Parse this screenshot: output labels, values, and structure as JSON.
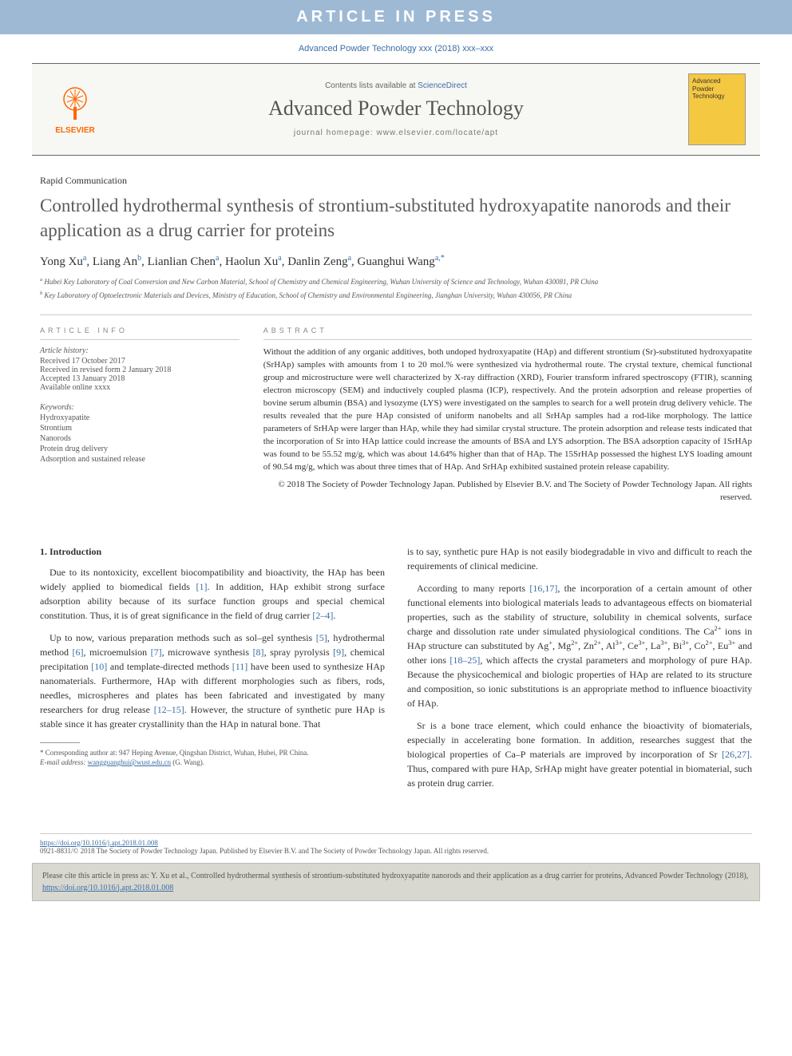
{
  "banner": "ARTICLE IN PRESS",
  "citation_top": "Advanced Powder Technology xxx (2018) xxx–xxx",
  "header": {
    "publisher_logo_text": "ELSEVIER",
    "contents_prefix": "Contents lists available at ",
    "contents_link": "ScienceDirect",
    "journal_name": "Advanced Powder Technology",
    "homepage_prefix": "journal homepage: ",
    "homepage_url": "www.elsevier.com/locate/apt",
    "cover_text": "Advanced Powder Technology"
  },
  "article": {
    "type": "Rapid Communication",
    "title": "Controlled hydrothermal synthesis of strontium-substituted hydroxyapatite nanorods and their application as a drug carrier for proteins",
    "authors_html": "Yong Xu<sup>a</sup>, Liang An<sup>b</sup>, Lianlian Chen<sup>a</sup>, Haolun Xu<sup>a</sup>, Danlin Zeng<sup>a</sup>, Guanghui Wang<sup>a,*</sup>",
    "affiliations": [
      "a Hubei Key Laboratory of Coal Conversion and New Carbon Material, School of Chemistry and Chemical Engineering, Wuhan University of Science and Technology, Wuhan 430081, PR China",
      "b Key Laboratory of Optoelectronic Materials and Devices, Ministry of Education, School of Chemistry and Environmental Engineering, Jianghan University, Wuhan 430056, PR China"
    ]
  },
  "info": {
    "heading": "ARTICLE INFO",
    "history_label": "Article history:",
    "history": [
      "Received 17 October 2017",
      "Received in revised form 2 January 2018",
      "Accepted 13 January 2018",
      "Available online xxxx"
    ],
    "keywords_label": "Keywords:",
    "keywords": [
      "Hydroxyapatite",
      "Strontium",
      "Nanorods",
      "Protein drug delivery",
      "Adsorption and sustained release"
    ]
  },
  "abstract": {
    "heading": "ABSTRACT",
    "text": "Without the addition of any organic additives, both undoped hydroxyapatite (HAp) and different strontium (Sr)-substituted hydroxyapatite (SrHAp) samples with amounts from 1 to 20 mol.% were synthesized via hydrothermal route. The crystal texture, chemical functional group and microstructure were well characterized by X-ray diffraction (XRD), Fourier transform infrared spectroscopy (FTIR), scanning electron microscopy (SEM) and inductively coupled plasma (ICP), respectively. And the protein adsorption and release properties of bovine serum albumin (BSA) and lysozyme (LYS) were investigated on the samples to search for a well protein drug delivery vehicle. The results revealed that the pure HAp consisted of uniform nanobelts and all SrHAp samples had a rod-like morphology. The lattice parameters of SrHAp were larger than HAp, while they had similar crystal structure. The protein adsorption and release tests indicated that the incorporation of Sr into HAp lattice could increase the amounts of BSA and LYS adsorption. The BSA adsorption capacity of 1SrHAp was found to be 55.52 mg/g, which was about 14.64% higher than that of HAp. The 15SrHAp possessed the highest LYS loading amount of 90.54 mg/g, which was about three times that of HAp. And SrHAp exhibited sustained protein release capability.",
    "copyright": "© 2018 The Society of Powder Technology Japan. Published by Elsevier B.V. and The Society of Powder Technology Japan. All rights reserved."
  },
  "body": {
    "section_heading": "1. Introduction",
    "col1_paras": [
      "Due to its nontoxicity, excellent biocompatibility and bioactivity, the HAp has been widely applied to biomedical fields <span class='ref'>[1]</span>. In addition, HAp exhibit strong surface adsorption ability because of its surface function groups and special chemical constitution. Thus, it is of great significance in the field of drug carrier <span class='ref'>[2–4]</span>.",
      "Up to now, various preparation methods such as sol–gel synthesis <span class='ref'>[5]</span>, hydrothermal method <span class='ref'>[6]</span>, microemulsion <span class='ref'>[7]</span>, microwave synthesis <span class='ref'>[8]</span>, spray pyrolysis <span class='ref'>[9]</span>, chemical precipitation <span class='ref'>[10]</span> and template-directed methods <span class='ref'>[11]</span> have been used to synthesize HAp nanomaterials. Furthermore, HAp with different morphologies such as fibers, rods, needles, microspheres and plates has been fabricated and investigated by many researchers for drug release <span class='ref'>[12–15]</span>. However, the structure of synthetic pure HAp is stable since it has greater crystallinity than the HAp in natural bone. That"
    ],
    "col2_paras": [
      "is to say, synthetic pure HAp is not easily biodegradable in vivo and difficult to reach the requirements of clinical medicine.",
      "According to many reports <span class='ref'>[16,17]</span>, the incorporation of a certain amount of other functional elements into biological materials leads to advantageous effects on biomaterial properties, such as the stability of structure, solubility in chemical solvents, surface charge and dissolution rate under simulated physiological conditions. The Ca<sup>2+</sup> ions in HAp structure can substituted by Ag<sup>+</sup>, Mg<sup>2+</sup>, Zn<sup>2+</sup>, Al<sup>3+</sup>, Ce<sup>3+</sup>, La<sup>3+</sup>, Bi<sup>3+</sup>, Co<sup>2+</sup>, Eu<sup>3+</sup> and other ions <span class='ref'>[18–25]</span>, which affects the crystal parameters and morphology of pure HAp. Because the physicochemical and biologic properties of HAp are related to its structure and composition, so ionic substitutions is an appropriate method to influence bioactivity of HAp.",
      "Sr is a bone trace element, which could enhance the bioactivity of biomaterials, especially in accelerating bone formation. In addition, researches suggest that the biological properties of Ca–P materials are improved by incorporation of Sr <span class='ref'>[26,27]</span>. Thus, compared with pure HAp, SrHAp might have greater potential in biomaterial, such as protein drug carrier."
    ]
  },
  "footnotes": {
    "corr": "* Corresponding author at: 947 Heping Avenue, Qingshan District, Wuhan, Hubei, PR China.",
    "email_label": "E-mail address: ",
    "email": "wangguanghui@wust.edu.cn",
    "email_suffix": " (G. Wang)."
  },
  "bottom": {
    "doi": "https://doi.org/10.1016/j.apt.2018.01.008",
    "issn_line": "0921-8831/© 2018 The Society of Powder Technology Japan. Published by Elsevier B.V. and The Society of Powder Technology Japan. All rights reserved."
  },
  "cite_box": {
    "text_prefix": "Please cite this article in press as: Y. Xu et al., Controlled hydrothermal synthesis of strontium-substituted hydroxyapatite nanorods and their application as a drug carrier for proteins, Advanced Powder Technology (2018), ",
    "doi": "https://doi.org/10.1016/j.apt.2018.01.008"
  },
  "colors": {
    "banner_bg": "#9eb9d4",
    "link": "#3a6ea5",
    "logo_orange": "#ff6600",
    "cover_bg": "#f5c842",
    "cite_bg": "#d8d8d0"
  }
}
